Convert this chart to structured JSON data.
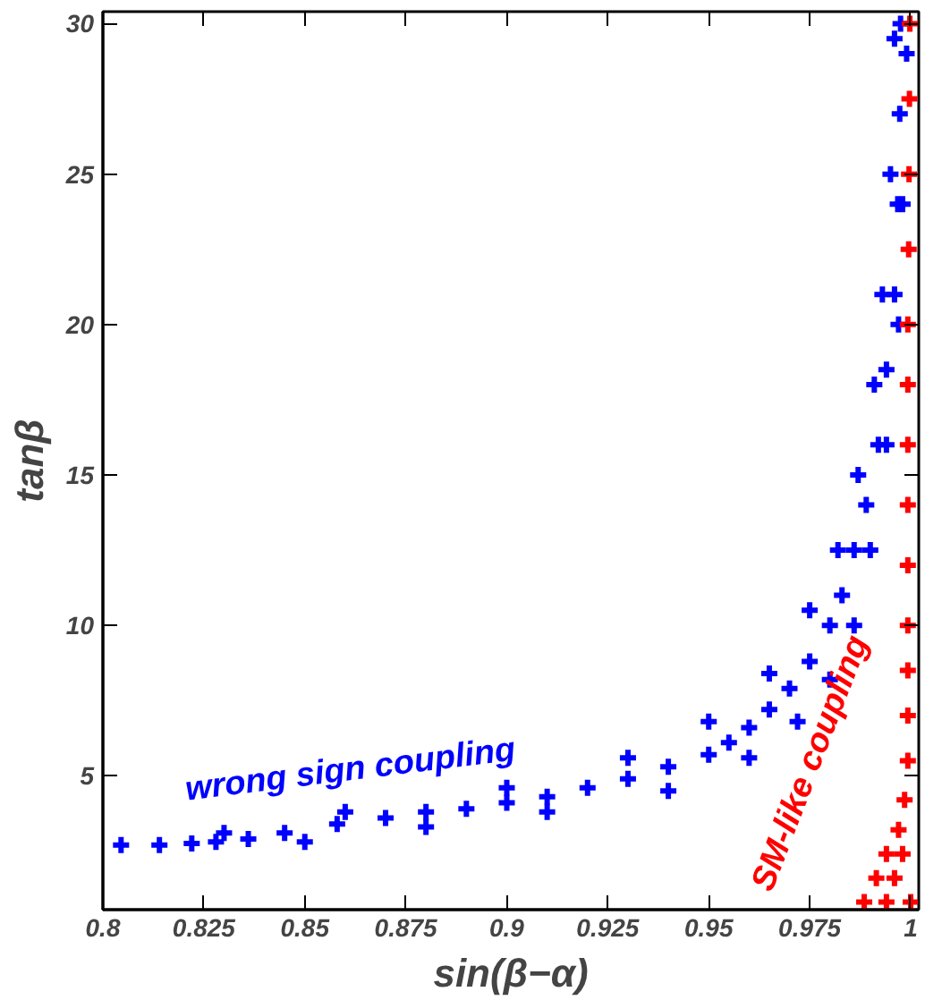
{
  "chart_data": {
    "type": "scatter",
    "xlabel": "sin(β−α)",
    "ylabel": "tanβ",
    "xlim": [
      0.8,
      1.002
    ],
    "ylim": [
      0.55,
      30.4
    ],
    "xticks": [
      {
        "value": 0.8,
        "label": "0.8"
      },
      0.825,
      0.85,
      0.875,
      {
        "value": 0.9,
        "label": "0.9"
      },
      0.925,
      0.95,
      0.975,
      1
    ],
    "yticks": [
      5,
      10,
      15,
      20,
      25,
      30
    ],
    "grid": false,
    "legend": false,
    "marker": "cross",
    "series": [
      {
        "name": "wrong sign coupling",
        "color": "#0000ff",
        "x": [
          0.8045,
          0.814,
          0.822,
          0.828,
          0.836,
          0.845,
          0.858,
          0.87,
          0.88,
          0.89,
          0.9,
          0.91,
          0.92,
          0.93,
          0.94,
          0.95,
          0.955,
          0.96,
          0.965,
          0.97,
          0.975,
          0.98,
          0.983,
          0.986,
          0.989,
          0.992,
          0.994,
          0.996,
          0.9968,
          0.9973,
          0.9975,
          0.83,
          0.86,
          0.9,
          0.93,
          0.95,
          0.965,
          0.975,
          0.982,
          0.987,
          0.991,
          0.993,
          0.995,
          0.996,
          0.85,
          0.88,
          0.91,
          0.94,
          0.96,
          0.972,
          0.98,
          0.986,
          0.99,
          0.994,
          0.997,
          0.998,
          0.999
        ],
        "values": [
          2.7,
          2.7,
          2.75,
          2.8,
          2.9,
          3.1,
          3.4,
          3.6,
          3.8,
          3.9,
          4.1,
          4.3,
          4.6,
          4.9,
          5.3,
          5.7,
          6.1,
          6.6,
          7.2,
          7.9,
          8.8,
          10,
          11,
          12.5,
          14,
          16,
          18.5,
          21,
          24,
          27,
          30,
          3.1,
          3.8,
          4.6,
          5.6,
          6.8,
          8.4,
          10.5,
          12.5,
          15,
          18,
          21,
          25,
          29.5,
          2.8,
          3.3,
          3.8,
          4.5,
          5.6,
          6.8,
          8.2,
          10,
          12.5,
          16,
          20,
          24,
          29
        ]
      },
      {
        "name": "SM-like coupling",
        "color": "#ff0000",
        "x": [
          0.9885,
          0.994,
          1.0,
          0.9915,
          0.996,
          0.994,
          0.998,
          0.997,
          0.9985,
          0.9993,
          0.9993,
          0.9993,
          0.9993,
          0.9993,
          0.9993,
          0.9993,
          0.9993,
          0.9993,
          0.9995,
          0.9996,
          0.9997,
          0.9998
        ],
        "values": [
          0.8,
          0.8,
          0.8,
          1.6,
          1.6,
          2.4,
          2.4,
          3.2,
          4.2,
          5.5,
          7,
          8.5,
          10,
          12,
          14,
          16,
          18,
          20,
          22.5,
          25,
          27.5,
          30
        ]
      }
    ]
  }
}
